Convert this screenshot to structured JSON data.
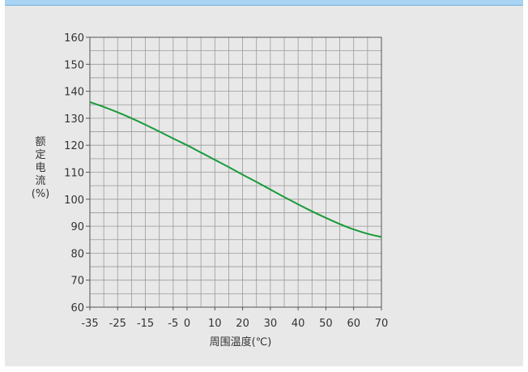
{
  "chart_data": {
    "type": "line",
    "title": "",
    "xlabel": "周围温度(℃)",
    "ylabel_chars": [
      "额",
      "定",
      "电",
      "流",
      "(%)"
    ],
    "x_ticks": [
      -35,
      -25,
      -15,
      -5,
      0,
      10,
      20,
      30,
      40,
      50,
      60,
      70
    ],
    "y_ticks": [
      60,
      70,
      80,
      90,
      100,
      110,
      120,
      130,
      140,
      150,
      160
    ],
    "xlim": [
      -35,
      70
    ],
    "ylim": [
      60,
      160
    ],
    "grid": true,
    "grid_x_step": 5,
    "grid_y_step": 5,
    "series": [
      {
        "color": "#1a9a3a",
        "x": [
          -35,
          -30,
          -25,
          -20,
          -15,
          -10,
          -5,
          0,
          5,
          10,
          15,
          20,
          25,
          30,
          35,
          40,
          45,
          50,
          55,
          60,
          65,
          70
        ],
        "y": [
          136,
          134.2,
          132.2,
          130,
          127.6,
          125.1,
          122.5,
          120,
          117.3,
          114.6,
          111.9,
          109.1,
          106.4,
          103.6,
          100.8,
          98.1,
          95.5,
          93.1,
          90.8,
          88.8,
          87.2,
          86
        ]
      }
    ]
  },
  "colors": {
    "grid": "#9a9a9a",
    "axis": "#555555",
    "background": "#e8e8e8",
    "topbar": "#a9d3f2"
  }
}
